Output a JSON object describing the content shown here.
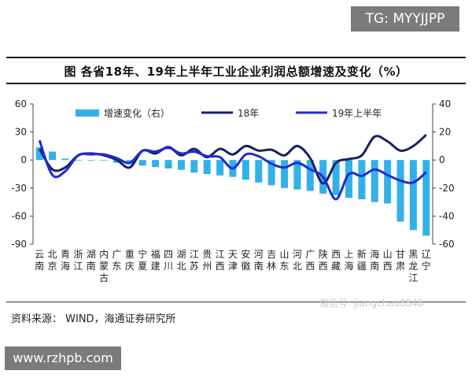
{
  "header": {
    "badge_text": "TG: MYYJJPP",
    "title": "图    各省18年、19年上半年工业企业利润总额增速及变化（%）"
  },
  "footer": {
    "source": "资料来源：  WIND，海通证券研究所",
    "watermark": "微信号: jiangchao8848",
    "url": "www.rzhpb.com"
  },
  "chart_data": {
    "type": "bar",
    "categories": [
      "云南",
      "北京",
      "青海",
      "浙江",
      "湖南",
      "内蒙古",
      "广东",
      "重庆",
      "宁夏",
      "福建",
      "四川",
      "湖北",
      "江苏",
      "贵州",
      "江西",
      "天津",
      "安徽",
      "河南",
      "吉林",
      "山东",
      "河北",
      "广西",
      "陕西",
      "西藏",
      "上海",
      "新疆",
      "海南",
      "山西",
      "甘肃",
      "黑龙江",
      "辽宁"
    ],
    "series": [
      {
        "name": "增速变化（右）",
        "axis": "right",
        "color": "#33b0e6",
        "values": [
          9,
          6,
          1,
          0,
          0,
          0,
          -2,
          -3,
          -4,
          -5,
          -6,
          -7,
          -9,
          -10,
          -11,
          -12,
          -14,
          -16,
          -18,
          -20,
          -21,
          -22,
          -24,
          -25,
          -27,
          -28,
          -30,
          -31,
          -44,
          -50,
          -54
        ]
      },
      {
        "name": "18年",
        "axis": "left",
        "color": "#142266",
        "values": [
          12,
          -10,
          -8,
          5,
          7,
          5,
          0,
          -8,
          10,
          7,
          14,
          5,
          12,
          3,
          12,
          6,
          15,
          10,
          11,
          5,
          15,
          2,
          -25,
          -3,
          1,
          5,
          25,
          20,
          10,
          15,
          27
        ]
      },
      {
        "name": "19年上半年",
        "axis": "left",
        "color": "#1f2ad6",
        "values": [
          21,
          -16,
          -12,
          5,
          6,
          6,
          2,
          -3,
          10,
          9,
          13,
          7,
          9,
          4,
          3,
          -9,
          6,
          4,
          -4,
          -8,
          -3,
          -10,
          -18,
          -42,
          -15,
          -17,
          -10,
          -16,
          -22,
          -24,
          -13
        ]
      }
    ],
    "y_left": {
      "min": -90,
      "max": 60,
      "ticks": [
        60,
        30,
        0,
        -30,
        -60,
        -90
      ]
    },
    "y_right": {
      "min": -60,
      "max": 40,
      "ticks": [
        40,
        20,
        0,
        -20,
        -40,
        -60
      ]
    },
    "legend_position": "top",
    "grid": false
  }
}
